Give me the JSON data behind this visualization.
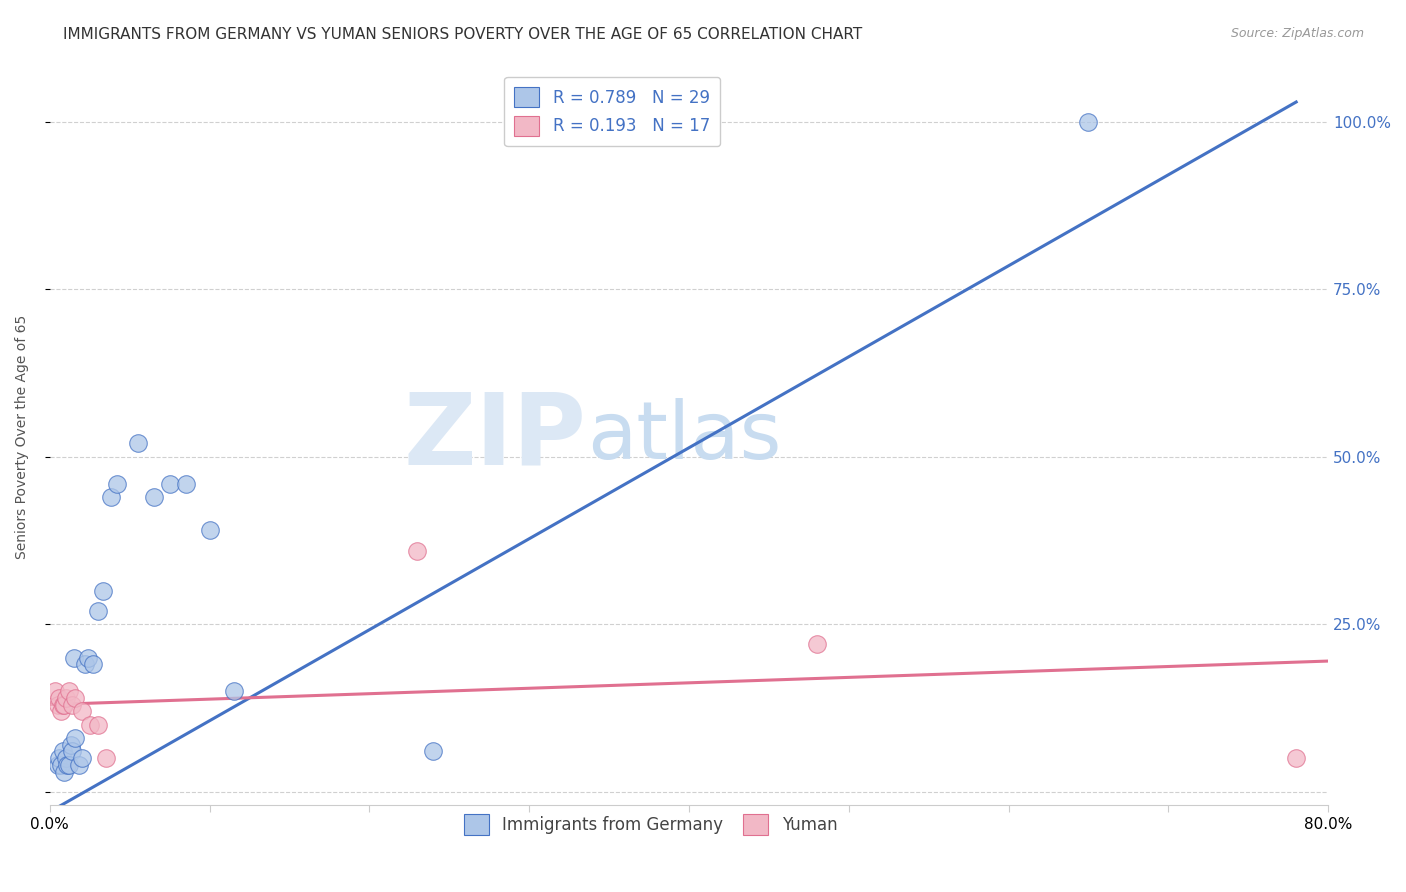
{
  "title": "IMMIGRANTS FROM GERMANY VS YUMAN SENIORS POVERTY OVER THE AGE OF 65 CORRELATION CHART",
  "source": "Source: ZipAtlas.com",
  "ylabel": "Seniors Poverty Over the Age of 65",
  "watermark_zip": "ZIP",
  "watermark_atlas": "atlas",
  "xlim": [
    0.0,
    0.8
  ],
  "ylim": [
    -0.02,
    1.08
  ],
  "yticks": [
    0.0,
    0.25,
    0.5,
    0.75,
    1.0
  ],
  "xticks": [
    0.0,
    0.1,
    0.2,
    0.3,
    0.4,
    0.5,
    0.6,
    0.7,
    0.8
  ],
  "xtick_labels": [
    "0.0%",
    "",
    "",
    "",
    "",
    "",
    "",
    "",
    "80.0%"
  ],
  "scatter1_color": "#adc6e8",
  "scatter2_color": "#f2b8c6",
  "line1_color": "#4472c4",
  "line2_color": "#e07090",
  "background_color": "#ffffff",
  "blue_points_x": [
    0.005,
    0.006,
    0.007,
    0.008,
    0.009,
    0.01,
    0.011,
    0.012,
    0.013,
    0.014,
    0.015,
    0.016,
    0.018,
    0.02,
    0.022,
    0.024,
    0.027,
    0.03,
    0.033,
    0.038,
    0.042,
    0.055,
    0.065,
    0.075,
    0.085,
    0.1,
    0.115,
    0.24,
    0.65
  ],
  "blue_points_y": [
    0.04,
    0.05,
    0.04,
    0.06,
    0.03,
    0.05,
    0.04,
    0.04,
    0.07,
    0.06,
    0.2,
    0.08,
    0.04,
    0.05,
    0.19,
    0.2,
    0.19,
    0.27,
    0.3,
    0.44,
    0.46,
    0.52,
    0.44,
    0.46,
    0.46,
    0.39,
    0.15,
    0.06,
    1.0
  ],
  "pink_points_x": [
    0.003,
    0.005,
    0.006,
    0.007,
    0.008,
    0.009,
    0.01,
    0.012,
    0.014,
    0.016,
    0.02,
    0.025,
    0.03,
    0.035,
    0.23,
    0.48,
    0.78
  ],
  "pink_points_y": [
    0.15,
    0.13,
    0.14,
    0.12,
    0.13,
    0.13,
    0.14,
    0.15,
    0.13,
    0.14,
    0.12,
    0.1,
    0.1,
    0.05,
    0.36,
    0.22,
    0.05
  ],
  "blue_line_x0": 0.0,
  "blue_line_y0": -0.03,
  "blue_line_x1": 0.78,
  "blue_line_y1": 1.03,
  "pink_line_x0": 0.0,
  "pink_line_y0": 0.13,
  "pink_line_x1": 0.8,
  "pink_line_y1": 0.195,
  "title_fontsize": 11,
  "source_fontsize": 9,
  "tick_fontsize": 11
}
